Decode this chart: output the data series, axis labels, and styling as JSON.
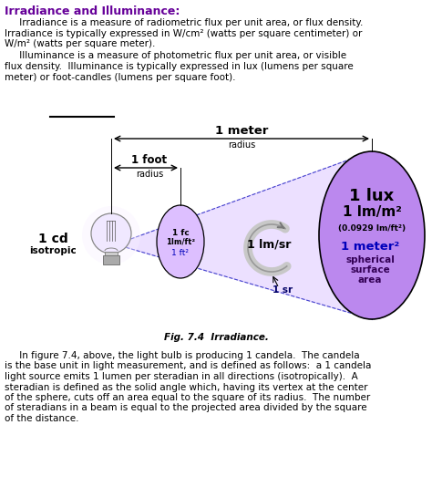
{
  "title": "Irradiance and Illuminance:",
  "title_color": "#660099",
  "para1_indent": "     Irradiance is a measure of radiometric flux per unit area, or flux density.",
  "para1_line2": "Irradiance is typically expressed in W/cm² (watts per square centimeter) or",
  "para1_line3": "W/m² (watts per square meter).",
  "para2_indent": "     Illuminance is a measure of photometric flux per unit area, or visible",
  "para2_line2": "flux density.  Illuminance is typically expressed in lux (lumens per square",
  "para2_line3": "meter) or foot-candles (lumens per square foot).",
  "fig_caption": "Fig. 7.4  Irradiance.",
  "bottom_para_lines": [
    "     In figure 7.4, above, the light bulb is producing 1 candela.  The candela",
    "is the base unit in light measurement, and is defined as follows:  a 1 candela",
    "light source emits 1 lumen per steradian in all directions (isotropically).  A",
    "steradian is defined as the solid angle which, having its vertex at the center",
    "of the sphere, cuts off an area equal to the square of its radius.  The number",
    "of steradians in a beam is equal to the projected area divided by the square",
    "of the distance."
  ],
  "bg_color": "#ffffff",
  "text_color": "#000000",
  "purple_circle": "#bb88ee",
  "purple_light_circle": "#ddbfff",
  "cone_fill": "#ddc8ff",
  "dashed_blue": "#4444cc"
}
